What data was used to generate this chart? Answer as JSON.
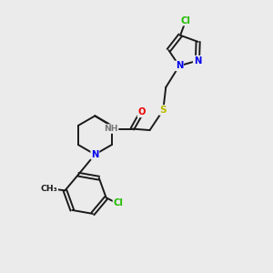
{
  "background_color": "#ebebeb",
  "bond_color": "#1a1a1a",
  "atom_colors": {
    "N": "#0000ee",
    "O": "#ee0000",
    "S": "#bbbb00",
    "Cl": "#22bb00",
    "H": "#777777",
    "C": "#1a1a1a"
  },
  "figsize": [
    3.0,
    3.0
  ],
  "dpi": 100
}
